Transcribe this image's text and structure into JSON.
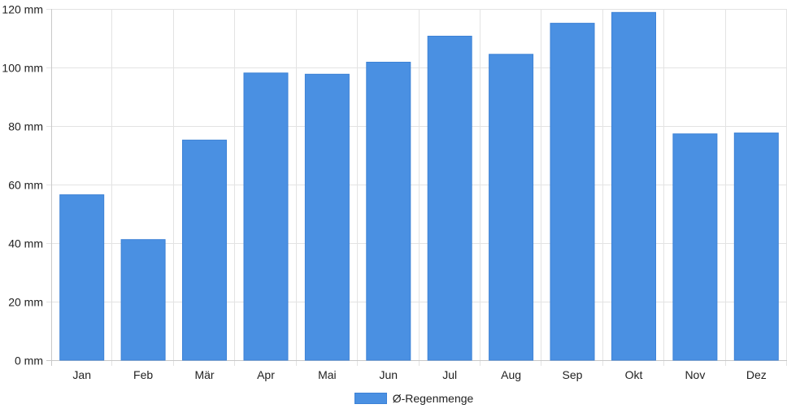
{
  "chart_data": {
    "type": "bar",
    "categories": [
      "Jan",
      "Feb",
      "Mär",
      "Apr",
      "Mai",
      "Jun",
      "Jul",
      "Aug",
      "Sep",
      "Okt",
      "Nov",
      "Dez"
    ],
    "series": [
      {
        "name": "Ø-Regenmenge",
        "values": [
          56.5,
          41.2,
          75.2,
          98.1,
          97.7,
          101.8,
          110.7,
          104.5,
          115.1,
          118.8,
          77.3,
          77.6
        ],
        "color": "#4a90e2"
      }
    ],
    "y_unit": "mm",
    "ylim": [
      0,
      120
    ],
    "y_ticks": [
      "0 mm",
      "20 mm",
      "40 mm",
      "60 mm",
      "80 mm",
      "100 mm",
      "120 mm"
    ],
    "grid": true,
    "legend_position": "bottom"
  }
}
